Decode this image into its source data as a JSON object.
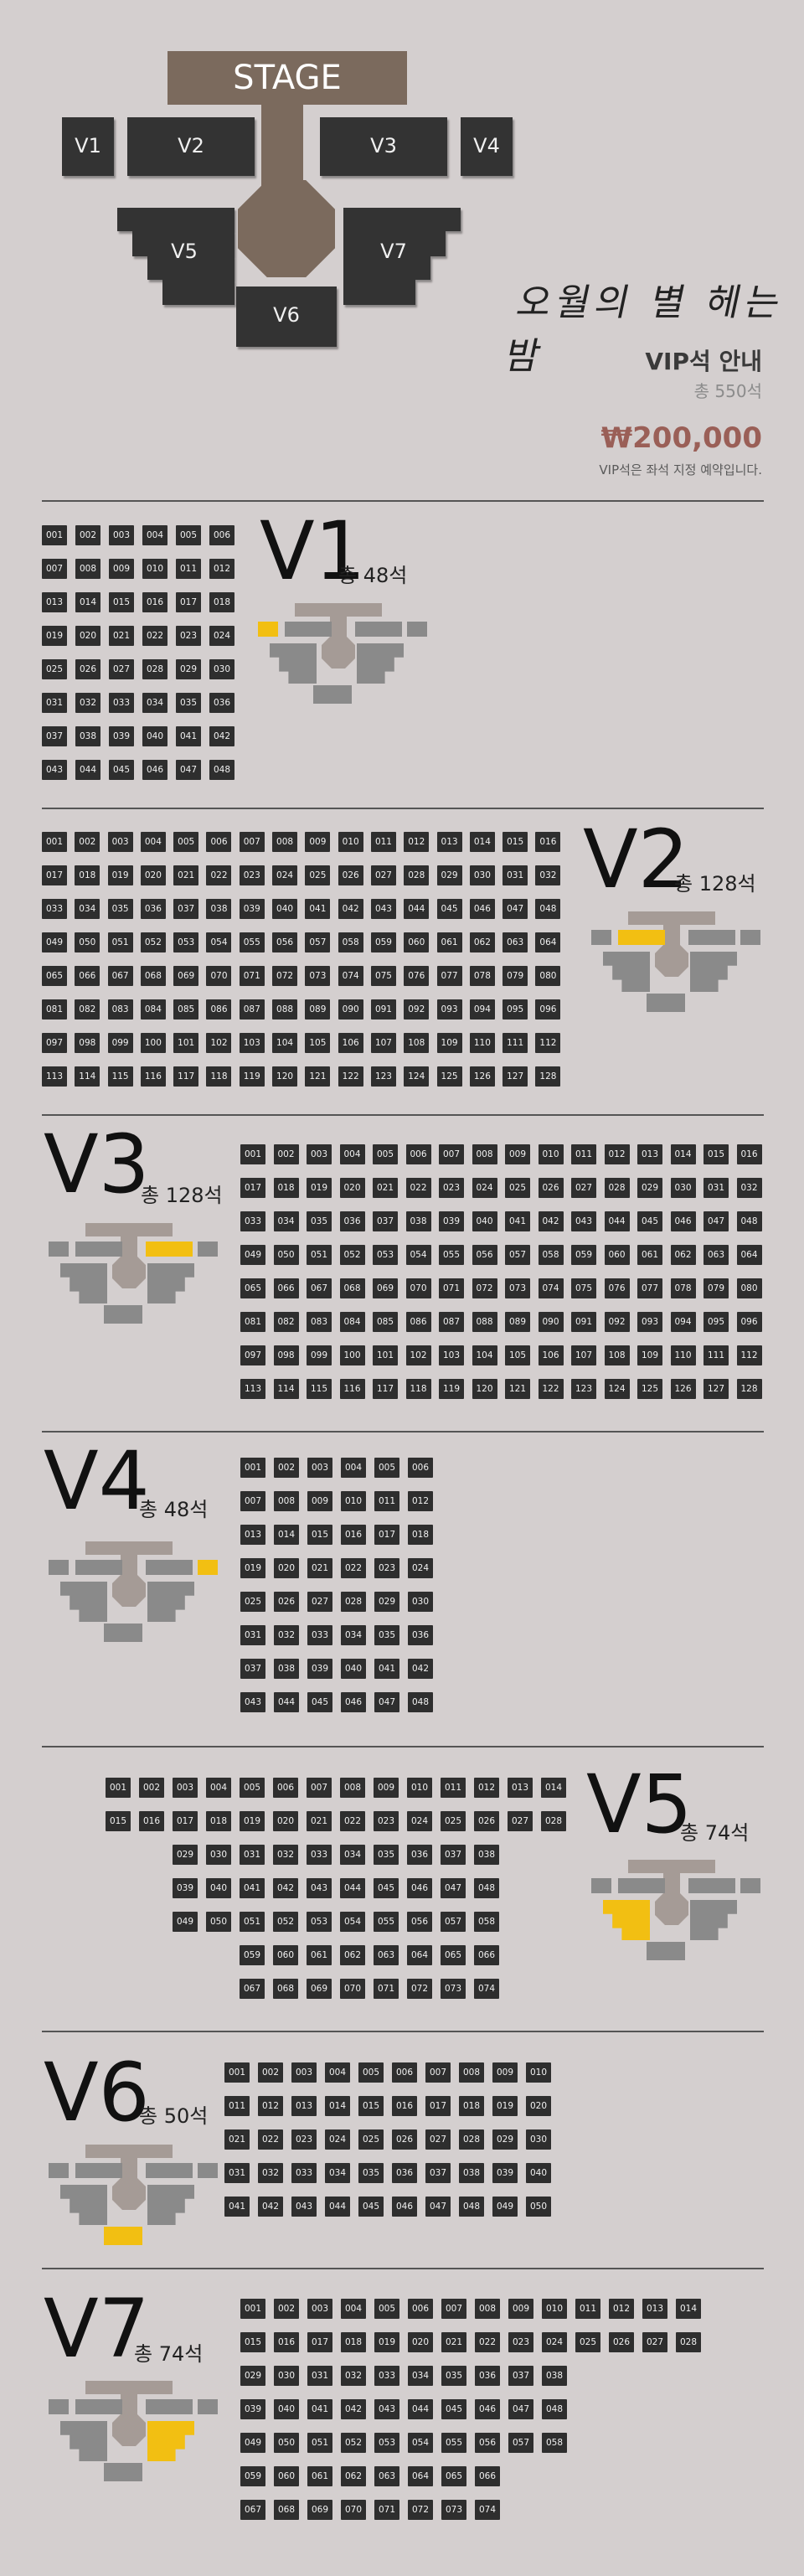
{
  "overview": {
    "stage": "STAGE",
    "blocks": [
      "V1",
      "V2",
      "V3",
      "V4",
      "V5",
      "V6",
      "V7"
    ],
    "calligraphy": "오월의 별 헤는 밤",
    "vip_title": "VIP석 안내",
    "vip_total": "총 550석",
    "price": "₩200,000",
    "price_note": "VIP석은 좌석 지정 예약입니다."
  },
  "sections": [
    {
      "name": "V1",
      "count": "총 48석",
      "seats": 48,
      "cols": 6
    },
    {
      "name": "V2",
      "count": "총 128석",
      "seats": 128,
      "cols": 16
    },
    {
      "name": "V3",
      "count": "총 128석",
      "seats": 128,
      "cols": 16
    },
    {
      "name": "V4",
      "count": "총 48석",
      "seats": 48,
      "cols": 6
    },
    {
      "name": "V5",
      "count": "총 74석",
      "seats": 74,
      "cols": 14
    },
    {
      "name": "V6",
      "count": "총 50석",
      "seats": 50,
      "cols": 10
    },
    {
      "name": "V7",
      "count": "총 74석",
      "seats": 74,
      "cols": 14
    }
  ],
  "colors": {
    "background": "#d4cfcf",
    "block": "#333333",
    "stage": "#7b6a5d",
    "highlight": "#f2bf12",
    "price": "#9a5f57"
  }
}
